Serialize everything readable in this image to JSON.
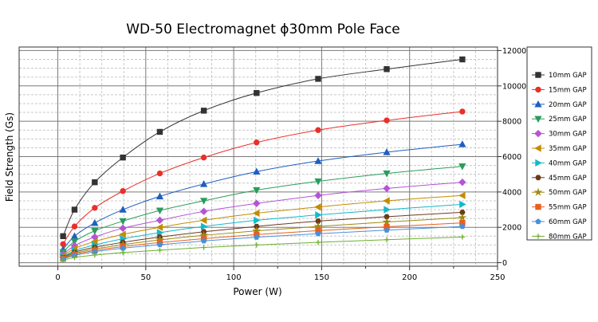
{
  "chart_data": {
    "type": "line",
    "title": "WD-50 Electromagnet ϕ30mm Pole Face",
    "xlabel": "Power (W)",
    "ylabel": "Field Strength (Gs)",
    "xlim": [
      -22,
      250
    ],
    "ylim": [
      -200,
      12200
    ],
    "x_ticks": [
      0,
      50,
      100,
      150,
      200,
      250
    ],
    "y_ticks": [
      0,
      2000,
      4000,
      6000,
      8000,
      10000,
      12000
    ],
    "y_axis_side": "right",
    "grid": true,
    "legend_position": "right",
    "x": [
      3,
      9.5,
      21,
      37,
      58,
      83,
      113,
      148,
      187,
      230
    ],
    "series": [
      {
        "name": "10mm GAP",
        "color": "#333333",
        "marker": "square",
        "values": [
          1500,
          3000,
          4550,
          5950,
          7400,
          8600,
          9600,
          10400,
          10950,
          11500
        ]
      },
      {
        "name": "15mm GAP",
        "color": "#e8302a",
        "marker": "circle",
        "values": [
          1050,
          2050,
          3100,
          4050,
          5050,
          5950,
          6800,
          7500,
          8050,
          8550
        ]
      },
      {
        "name": "20mm GAP",
        "color": "#1f5fbf",
        "marker": "triangle-up",
        "values": [
          750,
          1500,
          2250,
          3000,
          3750,
          4450,
          5150,
          5750,
          6250,
          6700
        ]
      },
      {
        "name": "25mm GAP",
        "color": "#2a9d5c",
        "marker": "triangle-down",
        "values": [
          600,
          1200,
          1800,
          2350,
          2950,
          3500,
          4100,
          4600,
          5050,
          5450
        ]
      },
      {
        "name": "30mm GAP",
        "color": "#b455d4",
        "marker": "diamond",
        "values": [
          480,
          960,
          1450,
          1950,
          2400,
          2900,
          3350,
          3800,
          4200,
          4550
        ]
      },
      {
        "name": "35mm GAP",
        "color": "#c48b00",
        "marker": "triangle-left",
        "values": [
          400,
          800,
          1200,
          1600,
          2000,
          2400,
          2800,
          3150,
          3500,
          3800
        ]
      },
      {
        "name": "40mm GAP",
        "color": "#14b8c8",
        "marker": "triangle-right",
        "values": [
          330,
          680,
          1000,
          1350,
          1700,
          2050,
          2400,
          2700,
          3000,
          3300
        ]
      },
      {
        "name": "45mm GAP",
        "color": "#6b3a1e",
        "marker": "hexagon",
        "values": [
          290,
          590,
          870,
          1150,
          1450,
          1750,
          2050,
          2350,
          2600,
          2850
        ]
      },
      {
        "name": "50mm GAP",
        "color": "#9b8a10",
        "marker": "star",
        "values": [
          250,
          520,
          770,
          1020,
          1290,
          1550,
          1800,
          2050,
          2300,
          2550
        ]
      },
      {
        "name": "55mm GAP",
        "color": "#e8601e",
        "marker": "square",
        "values": [
          220,
          460,
          690,
          910,
          1140,
          1360,
          1590,
          1810,
          2030,
          2250
        ]
      },
      {
        "name": "60mm GAP",
        "color": "#4a90d9",
        "marker": "pentagon",
        "values": [
          200,
          410,
          620,
          820,
          1020,
          1230,
          1440,
          1640,
          1840,
          2050
        ]
      },
      {
        "name": "80mm GAP",
        "color": "#6cb02e",
        "marker": "plus",
        "values": [
          140,
          290,
          430,
          570,
          710,
          860,
          1000,
          1150,
          1300,
          1450
        ]
      }
    ]
  }
}
